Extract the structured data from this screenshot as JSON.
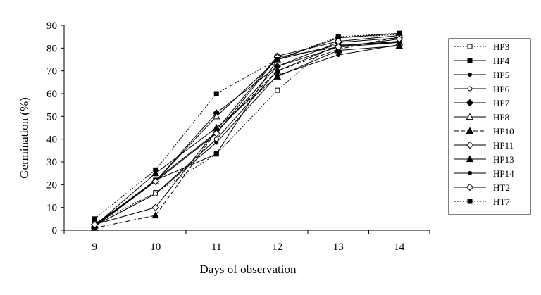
{
  "chart_data": {
    "type": "line",
    "title": "",
    "xlabel": "Days of observation",
    "ylabel": "Germination (%)",
    "x": [
      9,
      10,
      11,
      12,
      13,
      14
    ],
    "xlim": [
      8.5,
      14.5
    ],
    "ylim": [
      0,
      90
    ],
    "yticks": [
      0,
      10,
      20,
      30,
      40,
      50,
      60,
      70,
      80,
      90
    ],
    "grid": false,
    "legend_position": "right",
    "series": [
      {
        "name": "HP3",
        "values": [
          3,
          16.5,
          33.5,
          61.5,
          84.5,
          86
        ],
        "marker": "square-open",
        "dash": "dotted"
      },
      {
        "name": "HP4",
        "values": [
          2,
          22,
          33.5,
          75,
          84.5,
          86.5
        ],
        "marker": "square-filled",
        "dash": "solid"
      },
      {
        "name": "HP5",
        "values": [
          2,
          16,
          38.5,
          68,
          77,
          81.5
        ],
        "marker": "circle-filled",
        "dash": "solid"
      },
      {
        "name": "HP6",
        "values": [
          2,
          16,
          40,
          70,
          81,
          83
        ],
        "marker": "circle-open",
        "dash": "solid"
      },
      {
        "name": "HP7",
        "values": [
          1.5,
          21.5,
          51.5,
          72,
          82.5,
          84.5
        ],
        "marker": "diamond-filled",
        "dash": "solid"
      },
      {
        "name": "HP8",
        "values": [
          2,
          21.5,
          50,
          75,
          81.5,
          82.5
        ],
        "marker": "triangle-open",
        "dash": "solid"
      },
      {
        "name": "HP10",
        "values": [
          1,
          6.5,
          43.5,
          70,
          79.5,
          85
        ],
        "marker": "triangle-filled",
        "dash": "dashed"
      },
      {
        "name": "HP11",
        "values": [
          2.5,
          10,
          44,
          76.5,
          83,
          85.5
        ],
        "marker": "diamond-open",
        "dash": "solid"
      },
      {
        "name": "HP13",
        "values": [
          2,
          25,
          45,
          67.5,
          79,
          81
        ],
        "marker": "triangle-filled",
        "dash": "solid"
      },
      {
        "name": "HP14",
        "values": [
          2,
          22,
          43,
          72,
          80.5,
          82.5
        ],
        "marker": "circle-filled",
        "dash": "solid"
      },
      {
        "name": "HT2",
        "values": [
          2.5,
          21.5,
          42.5,
          76,
          80.5,
          84
        ],
        "marker": "diamond-open",
        "dash": "solid"
      },
      {
        "name": "HT7",
        "values": [
          5,
          26.5,
          60,
          75,
          85,
          86.5
        ],
        "marker": "square-filled",
        "dash": "dotted"
      }
    ]
  }
}
